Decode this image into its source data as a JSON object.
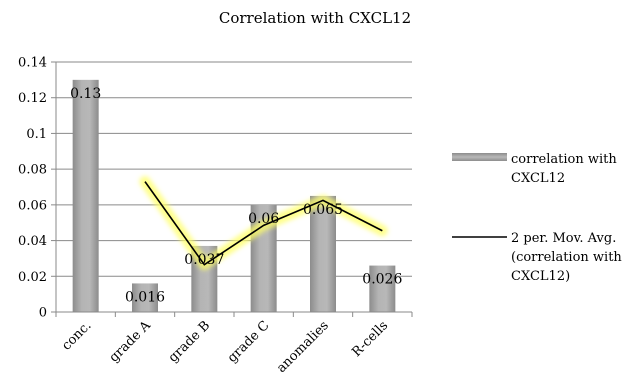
{
  "chart_data": {
    "type": "bar",
    "title": "Correlation with CXCL12",
    "categories": [
      "conc.",
      "grade A",
      "grade B",
      "grade C",
      "anomalies",
      "R-cells"
    ],
    "series": [
      {
        "name": "correlation with CXCL12",
        "type": "bar",
        "values": [
          0.13,
          0.016,
          0.037,
          0.06,
          0.065,
          0.026
        ],
        "data_labels": [
          "0.13",
          "0.016",
          "0.037",
          "0.06",
          "0.065",
          "0.026"
        ],
        "color": "#a9a9a9"
      },
      {
        "name": "2 per. Mov. Avg. (correlation with CXCL12)",
        "type": "line",
        "values": [
          null,
          0.073,
          0.0265,
          0.0485,
          0.0625,
          0.0455
        ],
        "color": "#000000",
        "glow_color": "#ffff66"
      }
    ],
    "yticks": [
      "0",
      "0.02",
      "0.04",
      "0.06",
      "0.08",
      "0.1",
      "0.12",
      "0.14"
    ],
    "ylim": [
      0,
      0.14
    ],
    "grid": true,
    "legend_position": "right"
  }
}
